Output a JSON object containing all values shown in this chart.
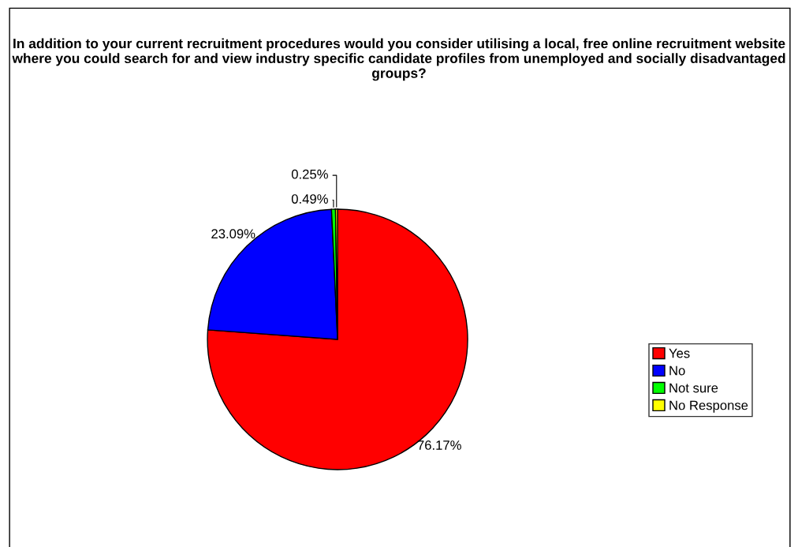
{
  "chart_data": {
    "type": "pie",
    "title": "In addition to your current recruitment procedures would you consider utilising a local, free online recruitment website where you could search for and view industry specific candidate profiles from unemployed and socially disadvantaged groups?",
    "categories": [
      "Yes",
      "No",
      "Not sure",
      "No Response"
    ],
    "values": [
      76.17,
      23.09,
      0.49,
      0.25
    ],
    "colors": [
      "#ff0000",
      "#0000ff",
      "#00ff00",
      "#ffff00"
    ],
    "value_labels": [
      "76.17%",
      "23.09%",
      "0.49%",
      "0.25%"
    ],
    "legend": "right"
  }
}
